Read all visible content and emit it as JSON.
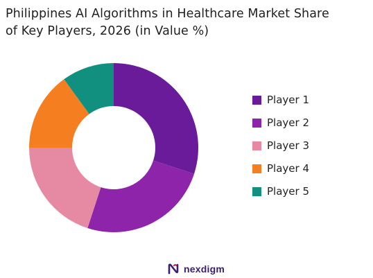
{
  "title_lines": [
    "Philippines AI Algorithms in Healthcare Market Share",
    "of Key Players, 2026 (in Value %)"
  ],
  "brand": {
    "name": "nexdigm",
    "icon": "nexdigm-logo-icon"
  },
  "colors": {
    "player1": "#6a1b9a",
    "player2": "#8e24aa",
    "player3": "#e68aa3",
    "player4": "#f57f20",
    "player5": "#12907f",
    "brand": "#3b1d6e"
  },
  "chart_data": {
    "type": "pie",
    "variant": "donut",
    "title": "Philippines AI Algorithms in Healthcare Market Share of Key Players, 2026 (in Value %)",
    "legend_position": "right",
    "categories": [
      "Player 1",
      "Player 2",
      "Player 3",
      "Player 4",
      "Player 5"
    ],
    "values": [
      30,
      25,
      20,
      15,
      10
    ],
    "colors": [
      "#6a1b9a",
      "#8e24aa",
      "#e68aa3",
      "#f57f20",
      "#12907f"
    ]
  }
}
